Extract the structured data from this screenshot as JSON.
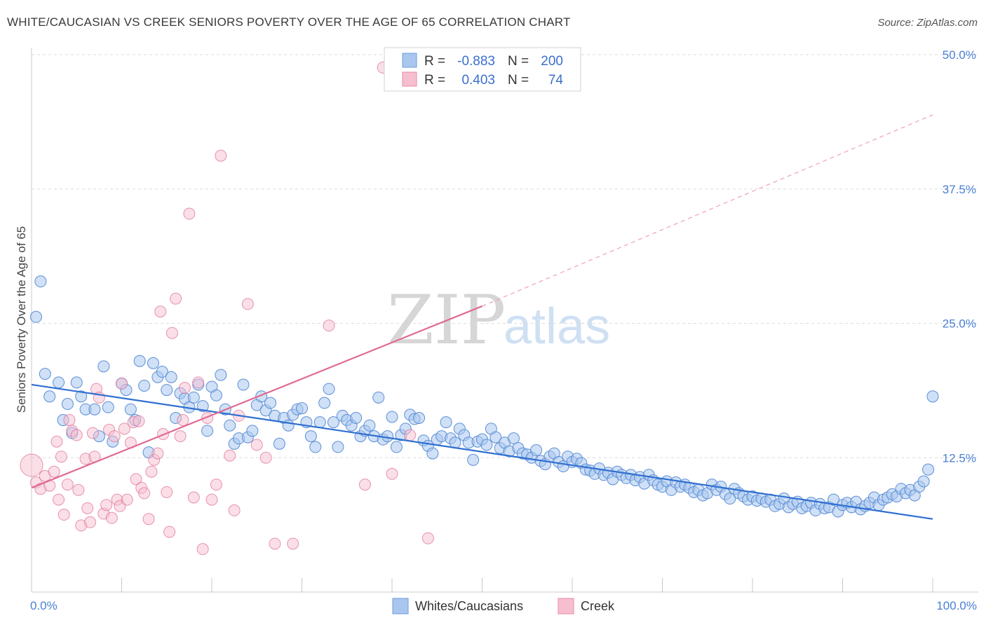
{
  "title": "WHITE/CAUCASIAN VS CREEK SENIORS POVERTY OVER THE AGE OF 65 CORRELATION CHART",
  "source": "Source: ZipAtlas.com",
  "watermark": {
    "zip": "ZIP",
    "atlas": "atlas"
  },
  "colors": {
    "blue": "#5b8fd6",
    "blue_fill": "#a9c7ee",
    "pink": "#e06a92",
    "pink_fill": "#f6bfd0"
  },
  "legend": {
    "rows": [
      {
        "r_label": "R =",
        "r_value": "-0.883",
        "n_label": "N =",
        "n_value": "200"
      },
      {
        "r_label": "R =",
        "r_value": "0.403",
        "n_label": "N =",
        "n_value": "74"
      }
    ]
  },
  "bottom_legend": {
    "blue": "Whites/Caucasians",
    "pink": "Creek"
  },
  "chart_data": {
    "type": "scatter",
    "title": "WHITE/CAUCASIAN VS CREEK SENIORS POVERTY OVER THE AGE OF 65 CORRELATION CHART",
    "xlabel": "",
    "ylabel": "Seniors Poverty Over the Age of 65",
    "xlim": [
      0,
      100
    ],
    "ylim": [
      0,
      50
    ],
    "x_tick_labels": [
      "0.0%",
      "100.0%"
    ],
    "y_ticks": [
      12.5,
      25.0,
      37.5,
      50.0
    ],
    "y_tick_labels": [
      "12.5%",
      "25.0%",
      "37.5%",
      "50.0%"
    ],
    "series": [
      {
        "name": "Whites/Caucasians",
        "r": -0.883,
        "n": 200,
        "trend": {
          "x": [
            0,
            100
          ],
          "y": [
            19.3,
            6.8
          ]
        },
        "points": [
          [
            0.5,
            25.6
          ],
          [
            1,
            28.9
          ],
          [
            1.5,
            20.3
          ],
          [
            2,
            18.2
          ],
          [
            3,
            19.5
          ],
          [
            3.5,
            16.0
          ],
          [
            4,
            17.5
          ],
          [
            4.5,
            14.8
          ],
          [
            5,
            19.5
          ],
          [
            5.5,
            18.2
          ],
          [
            6,
            17.0
          ],
          [
            7,
            17.0
          ],
          [
            7.5,
            14.5
          ],
          [
            8,
            21.0
          ],
          [
            8.5,
            17.2
          ],
          [
            9,
            14.0
          ],
          [
            10,
            19.4
          ],
          [
            10.5,
            18.8
          ],
          [
            11,
            17.0
          ],
          [
            11.5,
            16.0
          ],
          [
            12,
            21.5
          ],
          [
            12.5,
            19.2
          ],
          [
            13,
            13.0
          ],
          [
            13.5,
            21.3
          ],
          [
            14,
            20.0
          ],
          [
            14.5,
            20.5
          ],
          [
            15,
            18.8
          ],
          [
            15.5,
            20.0
          ],
          [
            16,
            16.2
          ],
          [
            16.5,
            18.5
          ],
          [
            17,
            18.0
          ],
          [
            17.5,
            17.2
          ],
          [
            18,
            18.1
          ],
          [
            18.5,
            19.3
          ],
          [
            19,
            17.3
          ],
          [
            19.5,
            15.0
          ],
          [
            20,
            19.1
          ],
          [
            20.5,
            18.3
          ],
          [
            21,
            20.2
          ],
          [
            21.5,
            17.0
          ],
          [
            22,
            15.5
          ],
          [
            22.5,
            13.8
          ],
          [
            23,
            14.3
          ],
          [
            23.5,
            19.3
          ],
          [
            24,
            14.4
          ],
          [
            24.5,
            15.0
          ],
          [
            25,
            17.4
          ],
          [
            25.5,
            18.2
          ],
          [
            26,
            16.9
          ],
          [
            26.5,
            17.6
          ],
          [
            27,
            16.4
          ],
          [
            27.5,
            13.8
          ],
          [
            28,
            16.2
          ],
          [
            28.5,
            15.5
          ],
          [
            29,
            16.5
          ],
          [
            29.5,
            17.0
          ],
          [
            30,
            17.1
          ],
          [
            30.5,
            15.8
          ],
          [
            31,
            14.5
          ],
          [
            31.5,
            13.5
          ],
          [
            32,
            15.8
          ],
          [
            32.5,
            17.6
          ],
          [
            33,
            18.9
          ],
          [
            33.5,
            15.8
          ],
          [
            34,
            13.5
          ],
          [
            34.5,
            16.4
          ],
          [
            35,
            16.0
          ],
          [
            35.5,
            15.5
          ],
          [
            36,
            16.2
          ],
          [
            36.5,
            14.5
          ],
          [
            37,
            15.0
          ],
          [
            37.5,
            15.5
          ],
          [
            38,
            14.5
          ],
          [
            38.5,
            18.1
          ],
          [
            39,
            14.2
          ],
          [
            39.5,
            14.5
          ],
          [
            40,
            16.3
          ],
          [
            40.5,
            13.5
          ],
          [
            41,
            14.6
          ],
          [
            41.5,
            15.2
          ],
          [
            42,
            16.5
          ],
          [
            42.5,
            16.1
          ],
          [
            43,
            16.2
          ],
          [
            43.5,
            14.1
          ],
          [
            44,
            13.6
          ],
          [
            44.5,
            12.9
          ],
          [
            45,
            14.2
          ],
          [
            45.5,
            14.5
          ],
          [
            46,
            15.8
          ],
          [
            46.5,
            14.3
          ],
          [
            47,
            13.9
          ],
          [
            47.5,
            15.2
          ],
          [
            48,
            14.6
          ],
          [
            48.5,
            13.9
          ],
          [
            49,
            12.3
          ],
          [
            49.5,
            14.0
          ],
          [
            50,
            14.2
          ],
          [
            50.5,
            13.7
          ],
          [
            51,
            15.2
          ],
          [
            51.5,
            14.4
          ],
          [
            52,
            13.4
          ],
          [
            52.5,
            13.9
          ],
          [
            53,
            13.1
          ],
          [
            53.5,
            14.3
          ],
          [
            54,
            13.4
          ],
          [
            54.5,
            12.9
          ],
          [
            55,
            12.8
          ],
          [
            55.5,
            12.5
          ],
          [
            56,
            13.2
          ],
          [
            56.5,
            12.2
          ],
          [
            57,
            11.9
          ],
          [
            57.5,
            12.6
          ],
          [
            58,
            12.9
          ],
          [
            58.5,
            12.1
          ],
          [
            59,
            11.7
          ],
          [
            59.5,
            12.6
          ],
          [
            60,
            12.1
          ],
          [
            60.5,
            12.4
          ],
          [
            61,
            12.0
          ],
          [
            61.5,
            11.4
          ],
          [
            62,
            11.3
          ],
          [
            62.5,
            11.0
          ],
          [
            63,
            11.5
          ],
          [
            63.5,
            10.9
          ],
          [
            64,
            11.1
          ],
          [
            64.5,
            10.5
          ],
          [
            65,
            11.2
          ],
          [
            65.5,
            10.9
          ],
          [
            66,
            10.6
          ],
          [
            66.5,
            10.9
          ],
          [
            67,
            10.4
          ],
          [
            67.5,
            10.7
          ],
          [
            68,
            10.1
          ],
          [
            68.5,
            10.9
          ],
          [
            69,
            10.4
          ],
          [
            69.5,
            10.0
          ],
          [
            70,
            9.8
          ],
          [
            70.5,
            10.3
          ],
          [
            71,
            9.5
          ],
          [
            71.5,
            10.2
          ],
          [
            72,
            9.8
          ],
          [
            72.5,
            10.0
          ],
          [
            73,
            9.7
          ],
          [
            73.5,
            9.3
          ],
          [
            74,
            9.5
          ],
          [
            74.5,
            9.0
          ],
          [
            75,
            9.2
          ],
          [
            75.5,
            10.0
          ],
          [
            76,
            9.5
          ],
          [
            76.5,
            9.8
          ],
          [
            77,
            9.1
          ],
          [
            77.5,
            8.7
          ],
          [
            78,
            9.6
          ],
          [
            78.5,
            9.2
          ],
          [
            79,
            8.9
          ],
          [
            79.5,
            8.6
          ],
          [
            80,
            8.9
          ],
          [
            80.5,
            8.5
          ],
          [
            81,
            8.7
          ],
          [
            81.5,
            8.4
          ],
          [
            82,
            8.6
          ],
          [
            82.5,
            8.0
          ],
          [
            83,
            8.2
          ],
          [
            83.5,
            8.7
          ],
          [
            84,
            7.9
          ],
          [
            84.5,
            8.2
          ],
          [
            85,
            8.4
          ],
          [
            85.5,
            7.8
          ],
          [
            86,
            8.0
          ],
          [
            86.5,
            8.3
          ],
          [
            87,
            7.6
          ],
          [
            87.5,
            8.2
          ],
          [
            88,
            7.8
          ],
          [
            88.5,
            7.9
          ],
          [
            89,
            8.6
          ],
          [
            89.5,
            7.5
          ],
          [
            90,
            8.1
          ],
          [
            90.5,
            8.3
          ],
          [
            91,
            7.9
          ],
          [
            91.5,
            8.4
          ],
          [
            92,
            7.7
          ],
          [
            92.5,
            8.0
          ],
          [
            93,
            8.3
          ],
          [
            93.5,
            8.8
          ],
          [
            94,
            8.1
          ],
          [
            94.5,
            8.6
          ],
          [
            95,
            8.8
          ],
          [
            95.5,
            9.1
          ],
          [
            96,
            8.9
          ],
          [
            96.5,
            9.6
          ],
          [
            97,
            9.2
          ],
          [
            97.5,
            9.5
          ],
          [
            98,
            9.0
          ],
          [
            98.5,
            9.8
          ],
          [
            99,
            10.3
          ],
          [
            99.5,
            11.4
          ],
          [
            100,
            18.2
          ]
        ]
      },
      {
        "name": "Creek",
        "r": 0.403,
        "n": 74,
        "trend": {
          "x": [
            0,
            50
          ],
          "y": [
            9.7,
            26.6
          ]
        },
        "trend_extension": {
          "x": [
            50,
            100
          ],
          "y": [
            26.6,
            44.4
          ]
        },
        "points": [
          [
            0,
            11.8
          ],
          [
            0.5,
            10.2
          ],
          [
            1,
            9.6
          ],
          [
            1.5,
            10.8
          ],
          [
            2,
            9.9
          ],
          [
            2.5,
            11.2
          ],
          [
            2.8,
            14.0
          ],
          [
            3,
            8.6
          ],
          [
            3.3,
            12.6
          ],
          [
            3.6,
            7.2
          ],
          [
            4,
            10.0
          ],
          [
            4.2,
            16.0
          ],
          [
            4.5,
            15.0
          ],
          [
            5,
            14.6
          ],
          [
            5.2,
            9.5
          ],
          [
            5.5,
            6.2
          ],
          [
            6,
            12.4
          ],
          [
            6.2,
            7.8
          ],
          [
            6.5,
            6.5
          ],
          [
            6.8,
            14.8
          ],
          [
            7,
            12.6
          ],
          [
            7.2,
            18.9
          ],
          [
            7.5,
            18.1
          ],
          [
            8,
            7.3
          ],
          [
            8.3,
            8.1
          ],
          [
            8.6,
            15.1
          ],
          [
            8.9,
            6.9
          ],
          [
            9.2,
            14.5
          ],
          [
            9.5,
            8.6
          ],
          [
            9.8,
            8.0
          ],
          [
            10,
            19.4
          ],
          [
            10.3,
            15.2
          ],
          [
            10.6,
            8.6
          ],
          [
            11,
            13.9
          ],
          [
            11.3,
            15.8
          ],
          [
            11.6,
            10.5
          ],
          [
            11.9,
            15.9
          ],
          [
            12.2,
            9.7
          ],
          [
            12.5,
            9.2
          ],
          [
            13,
            6.8
          ],
          [
            13.3,
            11.2
          ],
          [
            13.6,
            12.3
          ],
          [
            14,
            12.9
          ],
          [
            14.3,
            26.1
          ],
          [
            14.6,
            14.7
          ],
          [
            15,
            9.3
          ],
          [
            15.3,
            5.6
          ],
          [
            15.6,
            24.1
          ],
          [
            16,
            27.3
          ],
          [
            16.5,
            14.5
          ],
          [
            16.8,
            16.0
          ],
          [
            17,
            19.0
          ],
          [
            17.5,
            35.2
          ],
          [
            18,
            8.8
          ],
          [
            18.5,
            19.5
          ],
          [
            19,
            4.0
          ],
          [
            19.5,
            16.2
          ],
          [
            20,
            8.6
          ],
          [
            20.5,
            10.0
          ],
          [
            21,
            40.6
          ],
          [
            22,
            12.7
          ],
          [
            22.5,
            7.6
          ],
          [
            23,
            16.4
          ],
          [
            24,
            26.8
          ],
          [
            25,
            13.7
          ],
          [
            26,
            12.5
          ],
          [
            27,
            4.5
          ],
          [
            29,
            4.5
          ],
          [
            33,
            24.8
          ],
          [
            37,
            10.0
          ],
          [
            39,
            48.8
          ],
          [
            40,
            11.0
          ],
          [
            42,
            14.6
          ],
          [
            44,
            5.0
          ]
        ]
      }
    ]
  }
}
